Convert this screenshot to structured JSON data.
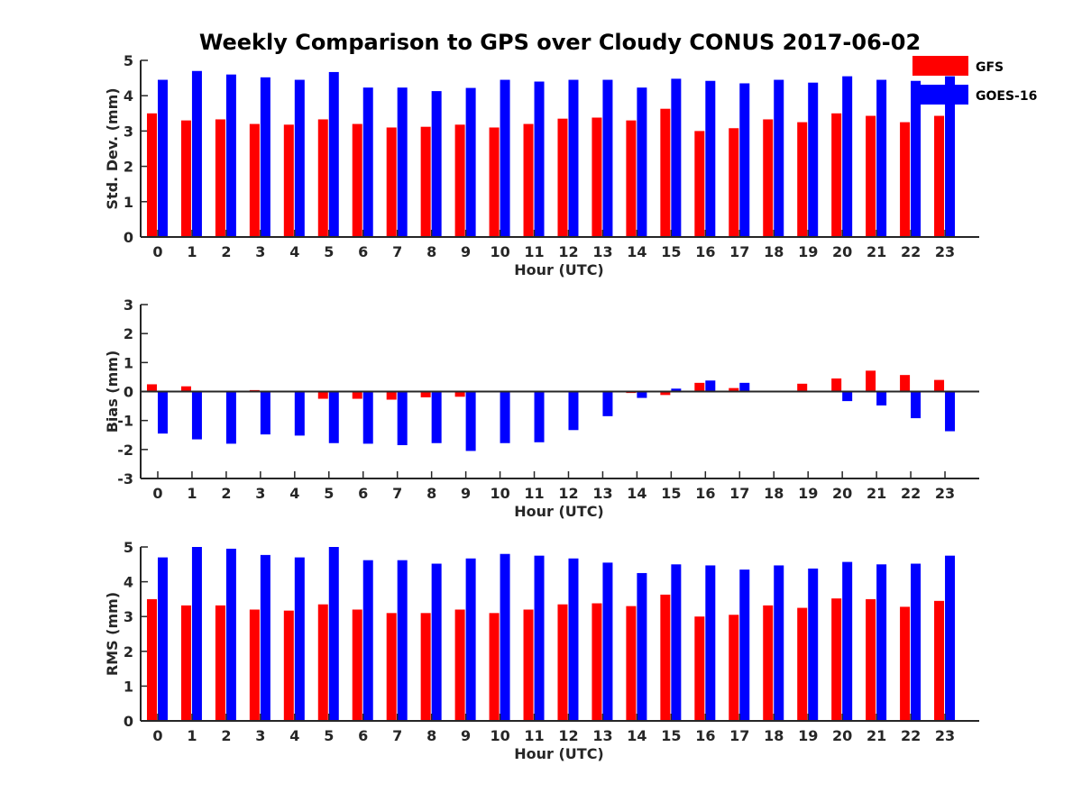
{
  "chart_data": [
    {
      "type": "bar",
      "title": "Weekly Comparison to GPS over Cloudy CONUS 2017-06-02",
      "xlabel": "Hour (UTC)",
      "ylabel": "Std. Dev. (mm)",
      "ylim": [
        0,
        5
      ],
      "yticks": [
        "0",
        "1",
        "2",
        "3",
        "4",
        "5"
      ],
      "categories": [
        "0",
        "1",
        "2",
        "3",
        "4",
        "5",
        "6",
        "7",
        "8",
        "9",
        "10",
        "11",
        "12",
        "13",
        "14",
        "15",
        "16",
        "17",
        "18",
        "19",
        "20",
        "21",
        "22",
        "23"
      ],
      "series": [
        {
          "name": "GFS",
          "color": "#ff0000",
          "values": [
            3.5,
            3.3,
            3.33,
            3.2,
            3.18,
            3.33,
            3.2,
            3.1,
            3.12,
            3.18,
            3.1,
            3.2,
            3.35,
            3.38,
            3.3,
            3.63,
            3.0,
            3.08,
            3.33,
            3.25,
            3.5,
            3.43,
            3.25,
            3.43
          ]
        },
        {
          "name": "GOES-16",
          "color": "#0000ff",
          "values": [
            4.45,
            4.7,
            4.6,
            4.52,
            4.45,
            4.67,
            4.23,
            4.23,
            4.13,
            4.22,
            4.45,
            4.4,
            4.45,
            4.45,
            4.23,
            4.48,
            4.42,
            4.35,
            4.45,
            4.37,
            4.55,
            4.45,
            4.42,
            4.55
          ]
        }
      ],
      "legend": "top-right"
    },
    {
      "type": "bar",
      "xlabel": "Hour (UTC)",
      "ylabel": "Bias (mm)",
      "ylim": [
        -3,
        3
      ],
      "yticks": [
        "-3",
        "-2",
        "-1",
        "0",
        "1",
        "2",
        "3"
      ],
      "categories": [
        "0",
        "1",
        "2",
        "3",
        "4",
        "5",
        "6",
        "7",
        "8",
        "9",
        "10",
        "11",
        "12",
        "13",
        "14",
        "15",
        "16",
        "17",
        "18",
        "19",
        "20",
        "21",
        "22",
        "23"
      ],
      "series": [
        {
          "name": "GFS",
          "color": "#ff0000",
          "values": [
            0.25,
            0.18,
            0.03,
            0.05,
            -0.03,
            -0.25,
            -0.25,
            -0.28,
            -0.2,
            -0.18,
            0.02,
            -0.02,
            -0.03,
            0.0,
            -0.05,
            -0.12,
            0.3,
            0.12,
            0.03,
            0.27,
            0.45,
            0.72,
            0.57,
            0.4
          ]
        },
        {
          "name": "GOES-16",
          "color": "#0000ff",
          "values": [
            -1.45,
            -1.65,
            -1.8,
            -1.48,
            -1.52,
            -1.78,
            -1.8,
            -1.85,
            -1.78,
            -2.05,
            -1.78,
            -1.75,
            -1.33,
            -0.85,
            -0.22,
            0.1,
            0.38,
            0.3,
            0.0,
            0.0,
            -0.33,
            -0.48,
            -0.92,
            -1.37
          ]
        }
      ]
    },
    {
      "type": "bar",
      "xlabel": "Hour (UTC)",
      "ylabel": "RMS (mm)",
      "ylim": [
        0,
        5
      ],
      "yticks": [
        "0",
        "1",
        "2",
        "3",
        "4",
        "5"
      ],
      "categories": [
        "0",
        "1",
        "2",
        "3",
        "4",
        "5",
        "6",
        "7",
        "8",
        "9",
        "10",
        "11",
        "12",
        "13",
        "14",
        "15",
        "16",
        "17",
        "18",
        "19",
        "20",
        "21",
        "22",
        "23"
      ],
      "series": [
        {
          "name": "GFS",
          "color": "#ff0000",
          "values": [
            3.5,
            3.32,
            3.32,
            3.2,
            3.17,
            3.35,
            3.2,
            3.1,
            3.1,
            3.2,
            3.1,
            3.2,
            3.35,
            3.38,
            3.3,
            3.63,
            3.0,
            3.05,
            3.32,
            3.25,
            3.52,
            3.5,
            3.28,
            3.45
          ]
        },
        {
          "name": "GOES-16",
          "color": "#0000ff",
          "values": [
            4.7,
            5.0,
            4.95,
            4.77,
            4.7,
            5.0,
            4.62,
            4.62,
            4.52,
            4.67,
            4.8,
            4.75,
            4.67,
            4.55,
            4.25,
            4.5,
            4.47,
            4.35,
            4.47,
            4.38,
            4.57,
            4.5,
            4.52,
            4.75
          ]
        }
      ]
    }
  ]
}
